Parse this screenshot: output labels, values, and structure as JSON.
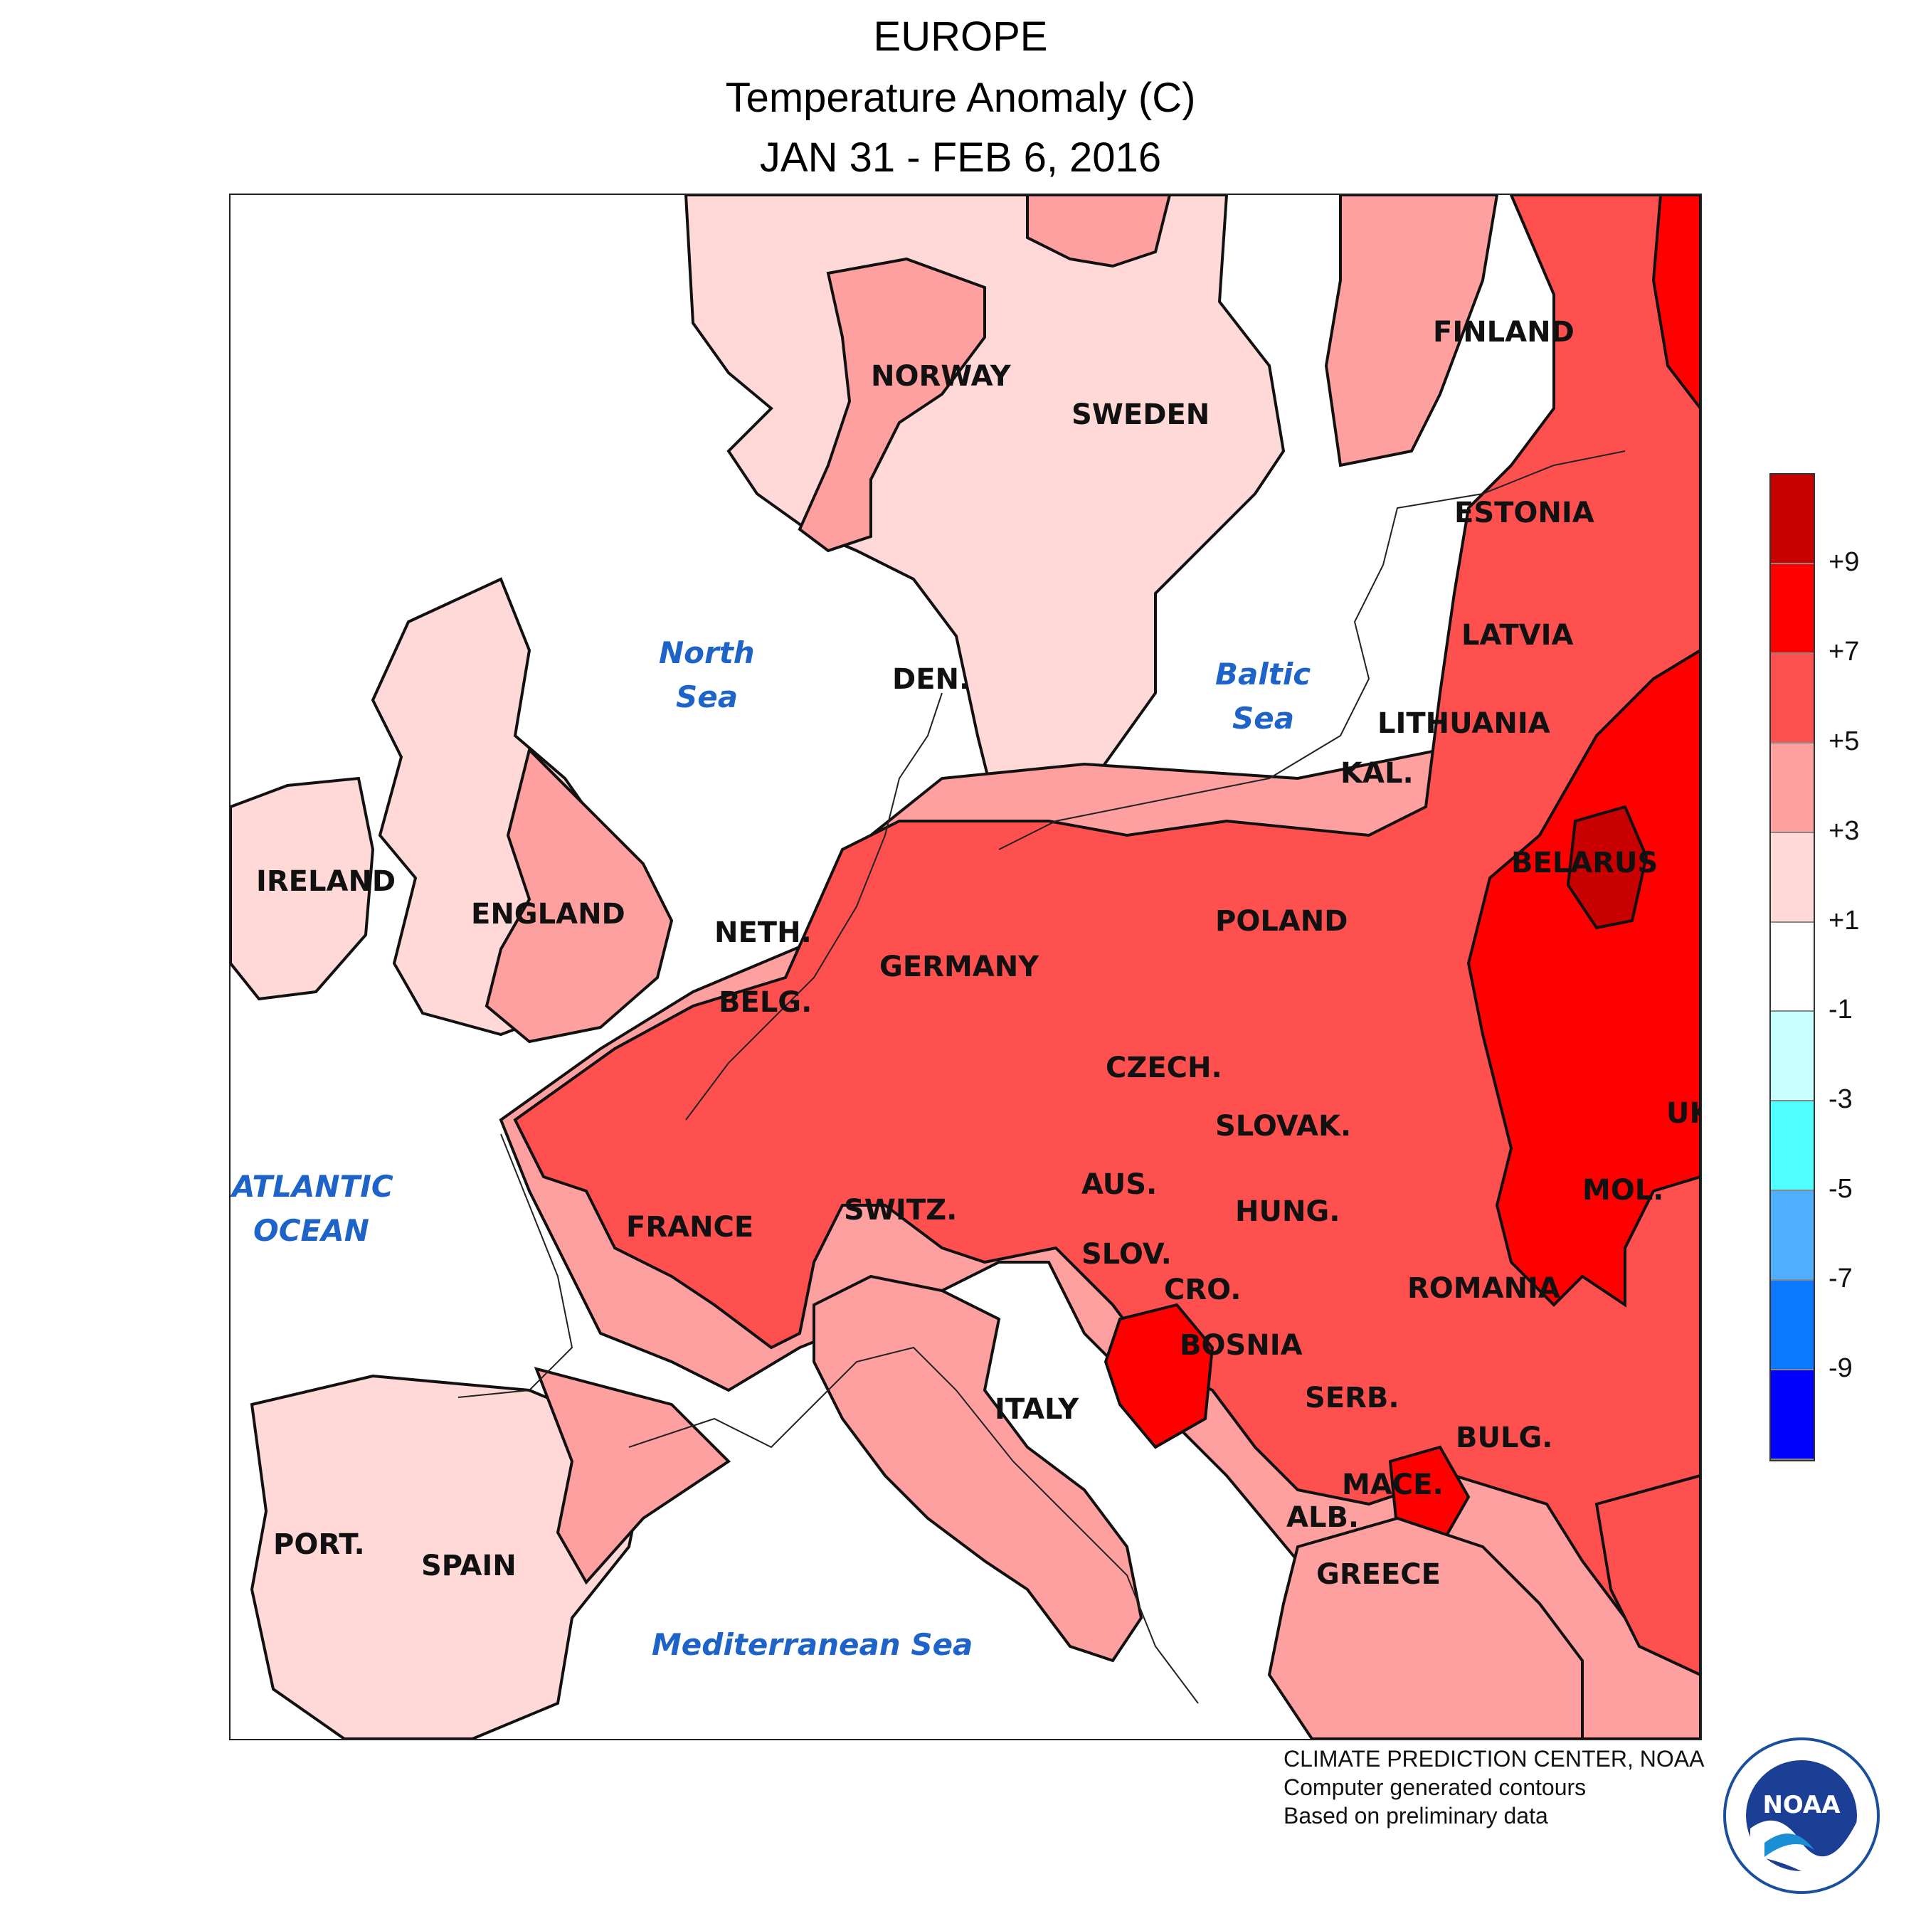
{
  "header": {
    "region": "EUROPE",
    "variable": "Temperature Anomaly (C)",
    "period": "JAN 31 - FEB 6, 2016"
  },
  "map": {
    "countries": [
      {
        "name": "NORWAY"
      },
      {
        "name": "SWEDEN"
      },
      {
        "name": "FINLAND"
      },
      {
        "name": "ESTONIA"
      },
      {
        "name": "LATVIA"
      },
      {
        "name": "LITHUANIA"
      },
      {
        "name": "KAL."
      },
      {
        "name": "DEN."
      },
      {
        "name": "IRELAND"
      },
      {
        "name": "ENGLAND"
      },
      {
        "name": "NETH."
      },
      {
        "name": "BELG."
      },
      {
        "name": "GERMANY"
      },
      {
        "name": "POLAND"
      },
      {
        "name": "BELARUS"
      },
      {
        "name": "CZECH."
      },
      {
        "name": "SLOVAK."
      },
      {
        "name": "UK"
      },
      {
        "name": "AUS."
      },
      {
        "name": "HUNG."
      },
      {
        "name": "MOL."
      },
      {
        "name": "FRANCE"
      },
      {
        "name": "SWITZ."
      },
      {
        "name": "SLOV."
      },
      {
        "name": "CRO."
      },
      {
        "name": "ROMANIA"
      },
      {
        "name": "BOSNIA"
      },
      {
        "name": "SERB."
      },
      {
        "name": "BULG."
      },
      {
        "name": "ITALY"
      },
      {
        "name": "MACE."
      },
      {
        "name": "ALB."
      },
      {
        "name": "GREECE"
      },
      {
        "name": "PORT."
      },
      {
        "name": "SPAIN"
      }
    ],
    "water_bodies": [
      {
        "name": "North Sea"
      },
      {
        "name": "Baltic Sea"
      },
      {
        "name": "ATLANTIC OCEAN"
      },
      {
        "name": "Mediterranean Sea"
      }
    ]
  },
  "legend": {
    "unit": "C",
    "labels": [
      "+9",
      "+7",
      "+5",
      "+3",
      "+1",
      "-1",
      "-3",
      "-5",
      "-7",
      "-9"
    ],
    "colors": [
      "#c80000",
      "#ff0000",
      "#ff5050",
      "#ffa0a0",
      "#ffd8d8",
      "#ffffff",
      "#c8ffff",
      "#50ffff",
      "#50b0ff",
      "#0a78ff",
      "#0000ff"
    ]
  },
  "credits": {
    "line1": "CLIMATE PREDICTION CENTER, NOAA",
    "line2": "Computer generated contours",
    "line3": "Based on preliminary data"
  },
  "logo": {
    "text": "NOAA",
    "icon": "noaa-seal-icon"
  }
}
